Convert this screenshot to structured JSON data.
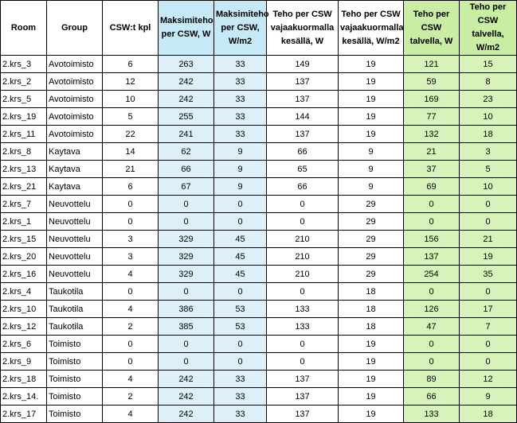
{
  "table": {
    "headers": [
      "Room",
      "Group",
      "CSW:t kpl",
      "Maksimiteho per CSW, W",
      "Maksimiteho per CSW, W/m2",
      "Teho per CSW vajaakuormalla kesällä, W",
      "Teho per CSW vajaakuormalla kesällä, W/m2",
      "Teho per CSW talvella, W",
      "Teho per CSW talvella, W/m2"
    ],
    "rows": [
      [
        "2.krs_3",
        "Avotoimisto",
        "6",
        "263",
        "33",
        "149",
        "19",
        "121",
        "15"
      ],
      [
        "2.krs_2",
        "Avotoimisto",
        "12",
        "242",
        "33",
        "137",
        "19",
        "59",
        "8"
      ],
      [
        "2.krs_5",
        "Avotoimisto",
        "10",
        "242",
        "33",
        "137",
        "19",
        "169",
        "23"
      ],
      [
        "2.krs_19",
        "Avotoimisto",
        "5",
        "255",
        "33",
        "144",
        "19",
        "77",
        "10"
      ],
      [
        "2.krs_11",
        "Avotoimisto",
        "22",
        "241",
        "33",
        "137",
        "19",
        "132",
        "18"
      ],
      [
        "2.krs_8",
        "Kaytava",
        "14",
        "62",
        "9",
        "66",
        "9",
        "21",
        "3"
      ],
      [
        "2.krs_13",
        "Kaytava",
        "21",
        "66",
        "9",
        "65",
        "9",
        "37",
        "5"
      ],
      [
        "2.krs_21",
        "Kaytava",
        "6",
        "67",
        "9",
        "66",
        "9",
        "69",
        "10"
      ],
      [
        "2.krs_7",
        "Neuvottelu",
        "0",
        "0",
        "0",
        "0",
        "29",
        "0",
        "0"
      ],
      [
        "2.krs_1",
        "Neuvottelu",
        "0",
        "0",
        "0",
        "0",
        "29",
        "0",
        "0"
      ],
      [
        "2.krs_15",
        "Neuvottelu",
        "3",
        "329",
        "45",
        "210",
        "29",
        "156",
        "21"
      ],
      [
        "2.krs_20",
        "Neuvottelu",
        "3",
        "329",
        "45",
        "210",
        "29",
        "137",
        "19"
      ],
      [
        "2.krs_16",
        "Neuvottelu",
        "4",
        "329",
        "45",
        "210",
        "29",
        "254",
        "35"
      ],
      [
        "2.krs_4",
        "Taukotila",
        "0",
        "0",
        "0",
        "0",
        "18",
        "0",
        "0"
      ],
      [
        "2.krs_10",
        "Taukotila",
        "4",
        "386",
        "53",
        "133",
        "18",
        "126",
        "17"
      ],
      [
        "2.krs_12",
        "Taukotila",
        "2",
        "385",
        "53",
        "133",
        "18",
        "47",
        "7"
      ],
      [
        "2.krs_6",
        "Toimisto",
        "0",
        "0",
        "0",
        "0",
        "19",
        "0",
        "0"
      ],
      [
        "2.krs_9",
        "Toimisto",
        "0",
        "0",
        "0",
        "0",
        "19",
        "0",
        "0"
      ],
      [
        "2.krs_18",
        "Toimisto",
        "4",
        "242",
        "33",
        "137",
        "19",
        "89",
        "12"
      ],
      [
        "2.krs_14.",
        "Toimisto",
        "2",
        "242",
        "33",
        "137",
        "19",
        "66",
        "9"
      ],
      [
        "2.krs_17",
        "Toimisto",
        "4",
        "242",
        "33",
        "137",
        "19",
        "133",
        "18"
      ]
    ]
  }
}
